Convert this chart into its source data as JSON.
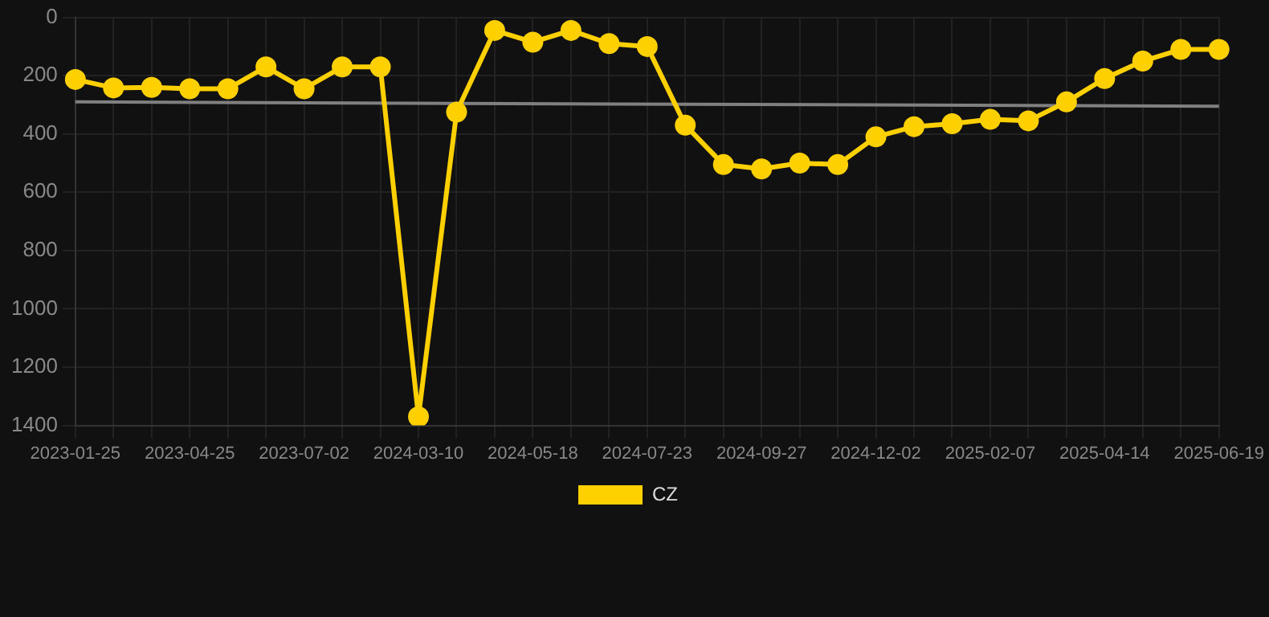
{
  "chart_data": {
    "type": "line",
    "categories": [
      "2023-01-25",
      null,
      null,
      "2023-04-25",
      null,
      null,
      "2023-07-02",
      null,
      null,
      "2024-03-10",
      null,
      null,
      "2024-05-18",
      null,
      null,
      "2024-07-23",
      null,
      null,
      "2024-09-27",
      null,
      null,
      "2024-12-02",
      null,
      null,
      "2025-02-07",
      null,
      null,
      "2025-04-14",
      null,
      null,
      "2025-06-19"
    ],
    "series": [
      {
        "name": "CZ",
        "color": "#ffd000",
        "values": [
          213,
          242,
          240,
          245,
          245,
          170,
          245,
          170,
          170,
          1370,
          325,
          45,
          85,
          45,
          90,
          100,
          370,
          505,
          520,
          500,
          505,
          410,
          375,
          365,
          350,
          355,
          290,
          210,
          150,
          110,
          110
        ]
      },
      {
        "type": "line",
        "color": "#808080",
        "marker": "none",
        "values": [
          290,
          null,
          null,
          null,
          null,
          null,
          null,
          null,
          null,
          null,
          null,
          null,
          null,
          null,
          null,
          null,
          null,
          null,
          null,
          null,
          null,
          null,
          null,
          null,
          null,
          null,
          null,
          null,
          null,
          null,
          305
        ]
      }
    ],
    "ylim": [
      1400,
      0
    ],
    "yticks": [
      0,
      200,
      400,
      600,
      800,
      1000,
      1200,
      1400
    ],
    "grid": true,
    "legend": "bottom",
    "marker": "circle",
    "line_style": "solid"
  }
}
